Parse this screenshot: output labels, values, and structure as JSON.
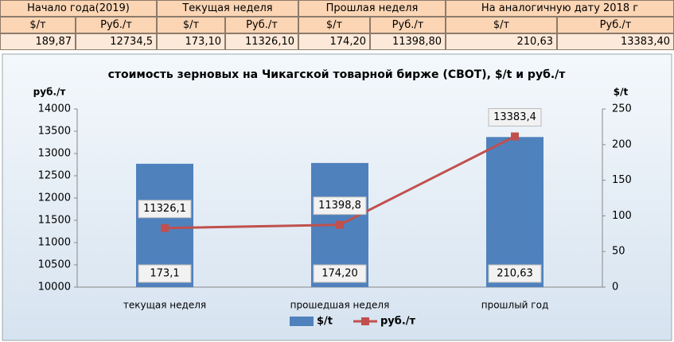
{
  "table": {
    "groups": [
      "Начало года(2019)",
      "Текущая неделя",
      "Прошлая неделя",
      "На аналогичную дату 2018 г"
    ],
    "units": [
      "$/т",
      "Руб./т",
      "$/т",
      "Руб./т",
      "$/т",
      "Руб./т",
      "$/т",
      "Руб./т"
    ],
    "values": [
      "189,87",
      "12734,5",
      "173,10",
      "11326,10",
      "174,20",
      "11398,80",
      "210,63",
      "13383,40"
    ]
  },
  "chart_data": {
    "type": "bar-line",
    "title": "стоимость зерновых на Чикагской товарной бирже (CBOT), $/t и руб./т",
    "ylabel": "руб./т",
    "y2label": "$/t",
    "categories": [
      "текущая неделя",
      "прошедшая неделя",
      "прошлый год"
    ],
    "series": [
      {
        "name": "$/t",
        "type": "bar",
        "axis": "y2",
        "color": "#4f81bd",
        "values": [
          173.1,
          174.2,
          210.63
        ],
        "value_labels": [
          "173,1",
          "174,20",
          "210,63"
        ]
      },
      {
        "name": "руб./т",
        "type": "line",
        "axis": "y",
        "color": "#c0504d",
        "values": [
          11326.1,
          11398.8,
          13383.4
        ],
        "value_labels": [
          "11326,1",
          "11398,8",
          "13383,4"
        ]
      }
    ],
    "ylim": [
      10000,
      14000
    ],
    "yticks": [
      10000,
      10500,
      11000,
      11500,
      12000,
      12500,
      13000,
      13500,
      14000
    ],
    "y2lim": [
      0,
      250
    ],
    "y2ticks": [
      0,
      50,
      100,
      150,
      200,
      250
    ],
    "legend": "bottom"
  }
}
